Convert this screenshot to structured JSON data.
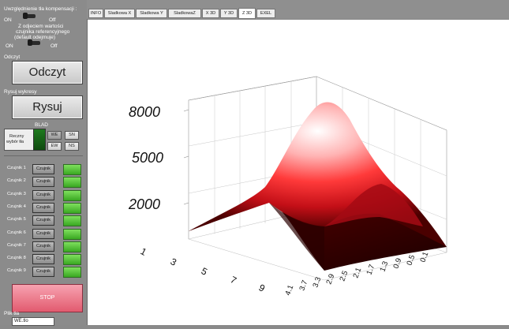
{
  "left_panel": {
    "compensation_label": "Uwzględnienie tła kompensacji :",
    "switch1_on": "ON",
    "switch1_off": "Off",
    "reference_label_1": "Z odjeciem wartości",
    "reference_label_2": "czujnika referencyjnego",
    "reference_label_3": "(default odejmuje)",
    "switch2_on": "ON",
    "switch2_off": "Off",
    "read_section_label": "Odczyt",
    "read_button": "Odczyt",
    "draw_section_label": "Rysuj wykresy",
    "draw_button": "Rysuj",
    "error_label": "BLAD",
    "manual_label_1": "Reczny",
    "manual_label_2": "wybór tła",
    "dir_we": "WE",
    "dir_sn": "SN",
    "dir_ew": "EW",
    "dir_ns": "NS",
    "sensors": [
      {
        "label": "Czujnik 1",
        "button": "Czujnik"
      },
      {
        "label": "Czujnik 2",
        "button": "Czujnik"
      },
      {
        "label": "Czujnik 3",
        "button": "Czujnik"
      },
      {
        "label": "Czujnik 4",
        "button": "Czujnik"
      },
      {
        "label": "Czujnik 5",
        "button": "Czujnik"
      },
      {
        "label": "Czujnik 6",
        "button": "Czujnik"
      },
      {
        "label": "Czujnik 7",
        "button": "Czujnik"
      },
      {
        "label": "Czujnik 8",
        "button": "Czujnik"
      },
      {
        "label": "Czujnik 9",
        "button": "Czujnik"
      }
    ],
    "stop_button": "STOP",
    "file_label": "Plik tła",
    "file_value": "WE.tlo"
  },
  "tabs": [
    "INFO",
    "Sladkowa X",
    "Sladkowa Y",
    "SladkowaZ",
    "X 3D",
    "Y 3D",
    "Z 3D",
    "EXEL"
  ],
  "active_tab": "Z 3D",
  "plot": {
    "z_ticks": [
      "8000",
      "5000",
      "2000"
    ],
    "x_ticks": [
      "1",
      "3",
      "5",
      "7",
      "9"
    ],
    "y_ticks": [
      "4.1",
      "3.7",
      "3.3",
      "2.9",
      "2.5",
      "2.1",
      "1.7",
      "1.3",
      "0.9",
      "0.5",
      "0.1"
    ],
    "colors": {
      "peak": "#ffffff",
      "high": "#ff3030",
      "mid": "#c0101a",
      "low": "#2a0000"
    }
  },
  "chart_data": {
    "type": "surface",
    "z_axis_ticks": [
      2000,
      5000,
      8000
    ],
    "x_axis_ticks": [
      1,
      3,
      5,
      7,
      9
    ],
    "y_axis_ticks": [
      4.1,
      3.7,
      3.3,
      2.9,
      2.5,
      2.1,
      1.7,
      1.3,
      0.9,
      0.5,
      0.1
    ],
    "z_range": [
      0,
      9000
    ]
  }
}
